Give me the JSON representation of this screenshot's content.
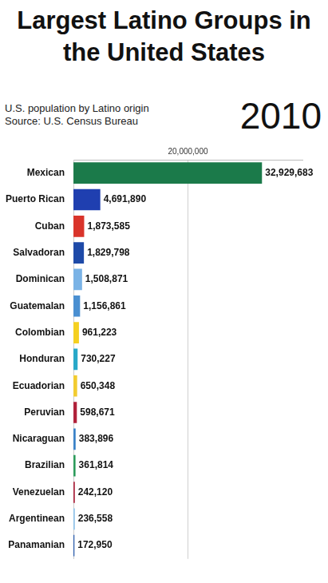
{
  "chart_data": {
    "type": "bar",
    "title": "Largest Latino Groups in the United States",
    "subtitle": [
      "U.S. population by Latino origin",
      "Source: U.S. Census Bureau"
    ],
    "annotations": [
      "2010"
    ],
    "orientation": "horizontal",
    "categories": [
      "Mexican",
      "Puerto Rican",
      "Cuban",
      "Salvadoran",
      "Dominican",
      "Guatemalan",
      "Colombian",
      "Honduran",
      "Ecuadorian",
      "Peruvian",
      "Nicaraguan",
      "Brazilian",
      "Venezuelan",
      "Argentinean",
      "Panamanian"
    ],
    "values": [
      32929683,
      4691890,
      1873585,
      1829798,
      1508871,
      1156861,
      961223,
      730227,
      650348,
      598671,
      383896,
      361814,
      242120,
      236558,
      172950
    ],
    "value_labels": [
      "32,929,683",
      "4,691,890",
      "1,873,585",
      "1,829,798",
      "1,508,871",
      "1,156,861",
      "961,223",
      "730,227",
      "650,348",
      "598,671",
      "383,896",
      "361,814",
      "242,120",
      "236,558",
      "172,950"
    ],
    "colors": [
      "#1b7a4a",
      "#1f3fb0",
      "#d9342b",
      "#1e4aa8",
      "#7ab3e6",
      "#4a8fd1",
      "#f5d020",
      "#28a8c8",
      "#f2cc30",
      "#b0213a",
      "#3a82c8",
      "#2a9a5a",
      "#a8203a",
      "#8cc0e8",
      "#2456a8"
    ],
    "xlim": [
      0,
      40000000
    ],
    "xticks": [
      {
        "value": 20000000,
        "label": "20,000,000"
      }
    ],
    "grid": true,
    "data_labels": true
  }
}
